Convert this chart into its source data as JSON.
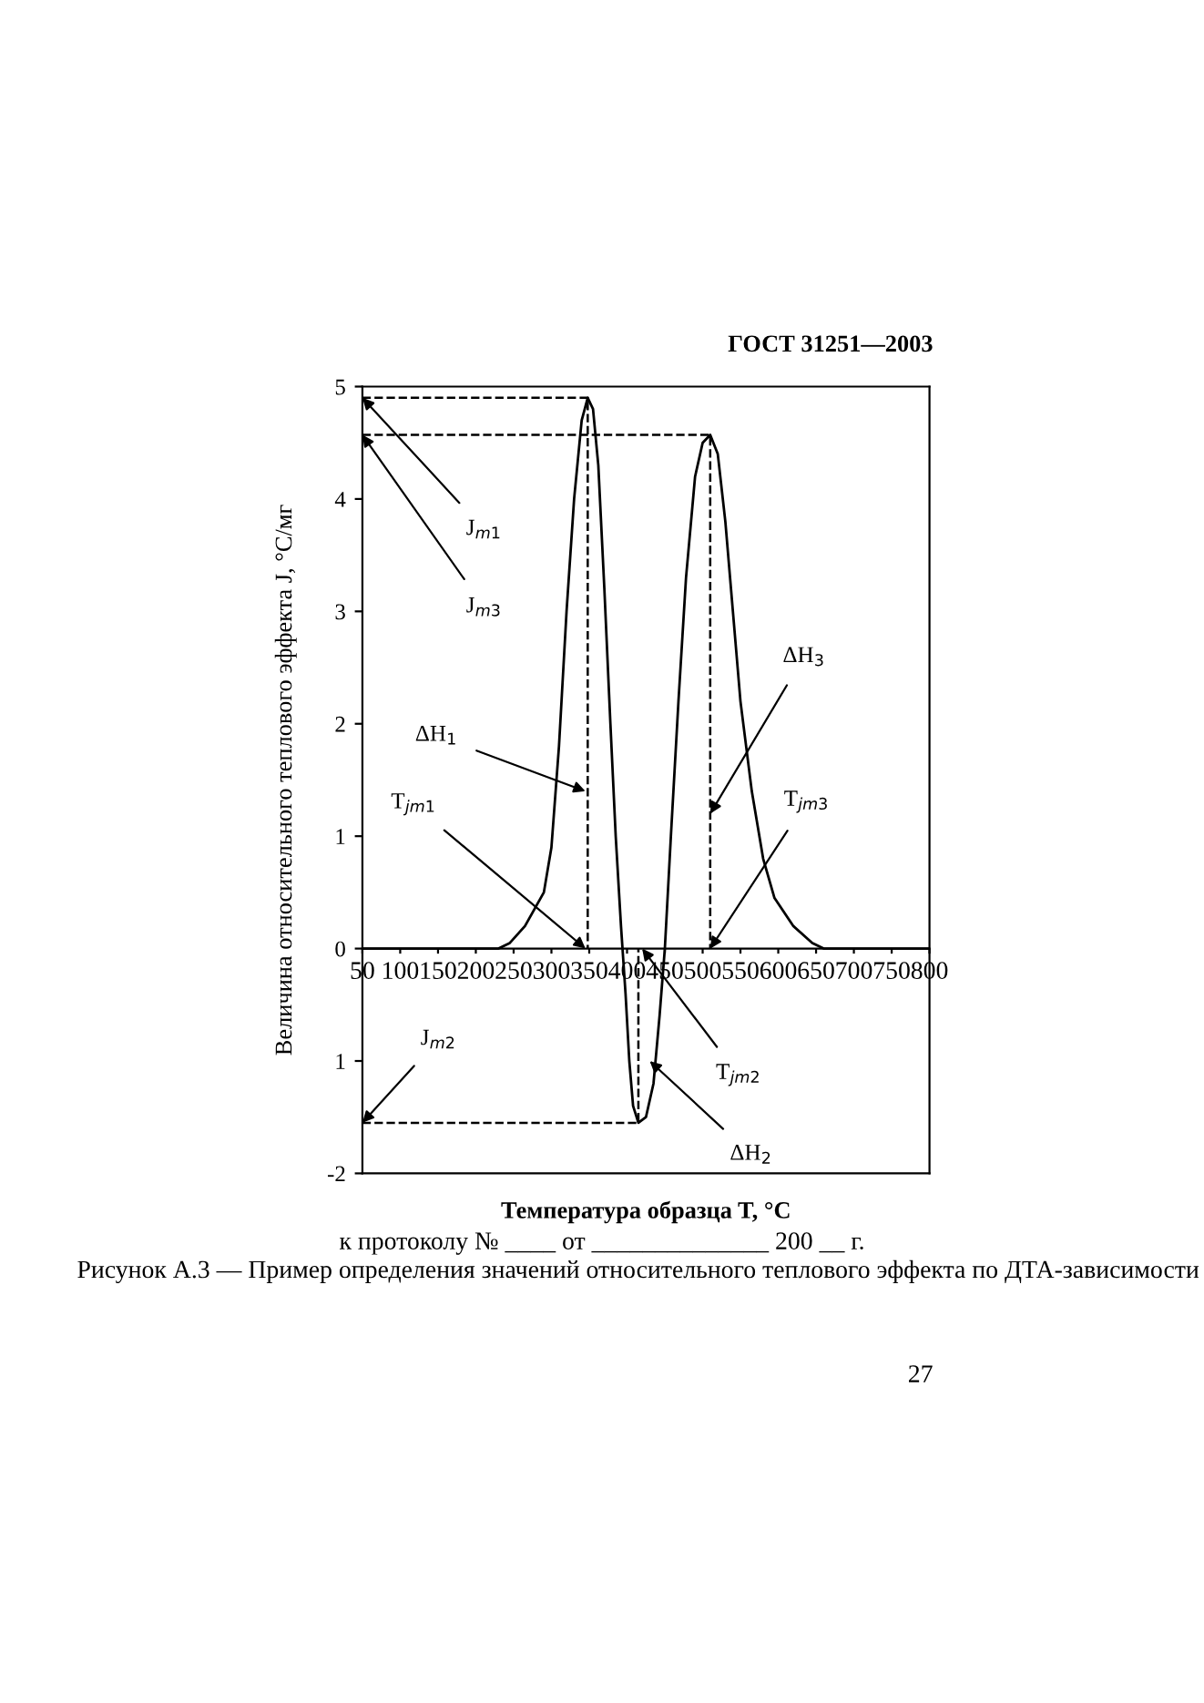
{
  "chart_data": {
    "type": "line",
    "xlabel": "Температура образца T, °С",
    "ylabel": "Величина относительного теплового эффекта J, °С/мг",
    "xlim": [
      50,
      800
    ],
    "ylim": [
      -2,
      5
    ],
    "xticks": [
      50,
      100,
      150,
      200,
      250,
      300,
      350,
      400,
      450,
      500,
      550,
      600,
      650,
      700,
      750,
      800
    ],
    "yticks": [
      -2,
      {
        "value": -1,
        "label": "1"
      },
      0,
      1,
      2,
      3,
      4,
      5
    ],
    "grid": false,
    "legend": false,
    "series": [
      {
        "color": "#000000",
        "line_style": "solid",
        "x": [
          50,
          230,
          245,
          265,
          290,
          300,
          310,
          320,
          330,
          340,
          348,
          355,
          362,
          370,
          378,
          385,
          392,
          398,
          403,
          408,
          415,
          425,
          435,
          443,
          450,
          458,
          468,
          478,
          490,
          500,
          510,
          520,
          530,
          540,
          550,
          565,
          580,
          595,
          620,
          645,
          660,
          800
        ],
        "values": [
          0,
          0,
          0.05,
          0.2,
          0.5,
          0.9,
          1.8,
          3.0,
          4.0,
          4.7,
          4.9,
          4.8,
          4.3,
          3.2,
          2.0,
          1.0,
          0.2,
          -0.4,
          -1.0,
          -1.4,
          -1.55,
          -1.5,
          -1.2,
          -0.6,
          0,
          1.0,
          2.2,
          3.3,
          4.2,
          4.5,
          4.57,
          4.4,
          3.8,
          3.0,
          2.2,
          1.4,
          0.8,
          0.45,
          0.2,
          0.05,
          0,
          0
        ]
      },
      {
        "color": "#000000",
        "line_style": "dashed",
        "x": [
          50,
          348,
          348
        ],
        "values": [
          4.9,
          4.9,
          0
        ]
      },
      {
        "color": "#000000",
        "line_style": "dashed",
        "x": [
          50,
          510,
          510
        ],
        "values": [
          4.57,
          4.57,
          0
        ]
      },
      {
        "color": "#000000",
        "line_style": "dashed",
        "x": [
          50,
          415,
          415
        ],
        "values": [
          -1.55,
          -1.55,
          0
        ]
      }
    ],
    "annotations": [
      {
        "text": "J$_{m1}$",
        "x": 50,
        "y": 4.9
      },
      {
        "text": "J$_{m3}$",
        "x": 50,
        "y": 4.57
      },
      {
        "text": "ΔH$_{1}$",
        "x": 345,
        "y": 1.4
      },
      {
        "text": "T$_{jm1}$",
        "x": 345,
        "y": 0
      },
      {
        "text": "ΔH$_{3}$",
        "x": 510,
        "y": 1.2
      },
      {
        "text": "T$_{jm3}$",
        "x": 510,
        "y": 0
      },
      {
        "text": "J$_{m2}$",
        "x": 50,
        "y": -1.55
      },
      {
        "text": "T$_{jm2}$",
        "x": 420,
        "y": 0
      },
      {
        "text": "ΔH$_{2}$",
        "x": 430,
        "y": -1.0
      },
      "ГОСТ 31251—2003",
      "к протоколу № ____ от ______________ 200 __ г.",
      "Рисунок А.3 — Пример определения значений относительного теплового эффекта по ДТА-зависимости",
      "27"
    ]
  }
}
